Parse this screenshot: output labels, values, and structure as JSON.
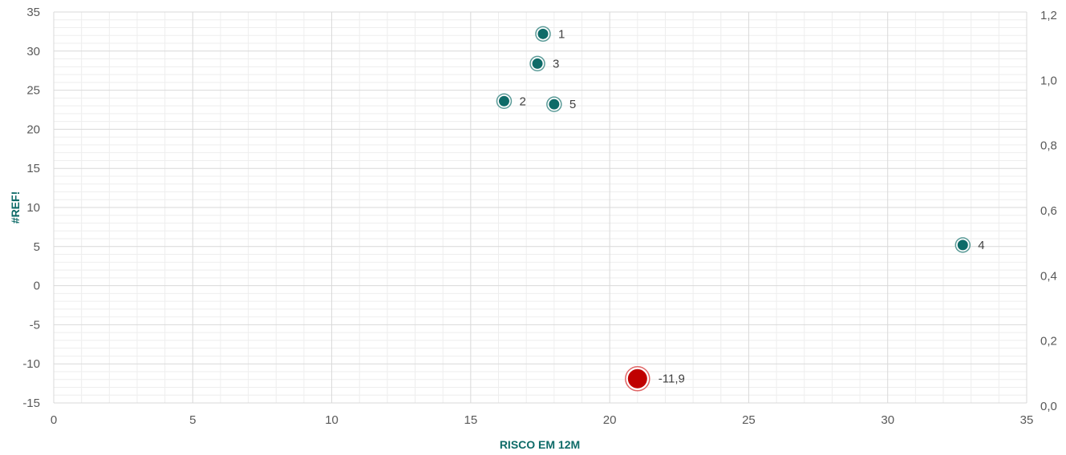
{
  "chart_data": {
    "type": "scatter",
    "title": "",
    "xlabel": "RISCO EM 12M",
    "ylabel": "#REF!",
    "xlim": [
      0,
      35
    ],
    "ylim": [
      -15,
      35
    ],
    "y2lim": [
      0,
      1.2
    ],
    "x_ticks": [
      "0",
      "5",
      "10",
      "15",
      "20",
      "25",
      "30",
      "35"
    ],
    "y_ticks": [
      "35",
      "30",
      "25",
      "20",
      "15",
      "10",
      "5",
      "0",
      "-5",
      "-10",
      "-15"
    ],
    "y2_ticks": [
      "1,2",
      "1,0",
      "0,8",
      "0,6",
      "0,4",
      "0,2",
      "0,0"
    ],
    "grid": true,
    "colors": {
      "primary": "#0e6b68",
      "highlight": "#c00000",
      "grid_major": "#d9d9d9",
      "grid_minor": "#eeeeee"
    },
    "points": [
      {
        "label": "1",
        "x": 17.6,
        "y": 32.2
      },
      {
        "label": "3",
        "x": 17.4,
        "y": 28.4
      },
      {
        "label": "2",
        "x": 16.2,
        "y": 23.6
      },
      {
        "label": "5",
        "x": 18.0,
        "y": 23.2
      },
      {
        "label": "4",
        "x": 32.7,
        "y": 5.2
      }
    ],
    "highlight_point": {
      "label": "-11,9",
      "x": 21.0,
      "y": -11.9
    }
  }
}
